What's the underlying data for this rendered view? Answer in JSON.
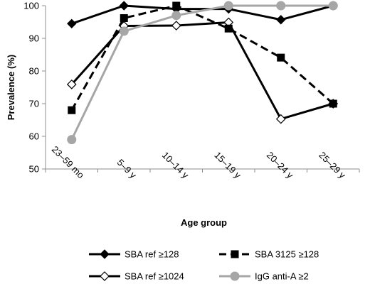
{
  "chart_data": {
    "type": "line",
    "xlabel": "Age group",
    "ylabel": "Prevalence (%)",
    "ylim": [
      50,
      100
    ],
    "yticks": [
      50,
      60,
      70,
      80,
      90,
      100
    ],
    "grid": false,
    "legend_position": "bottom",
    "categories": [
      "23–59 mo",
      "5–9 y",
      "10–14 y",
      "15–19 y",
      "20–24 y",
      "25–29 y"
    ],
    "series": [
      {
        "name": "SBA ref ≥128",
        "values": [
          94.5,
          100,
          99,
          99,
          95.7,
          100
        ],
        "color": "#000000",
        "marker": "filled-diamond",
        "dash": "solid"
      },
      {
        "name": "SBA 3125 ≥128",
        "values": [
          68,
          96.2,
          100,
          93,
          84.1,
          70
        ],
        "color": "#000000",
        "marker": "filled-square",
        "dash": "dashed"
      },
      {
        "name": "SBA ref ≥1024",
        "values": [
          75.9,
          93.8,
          93.9,
          94.9,
          65.3,
          70
        ],
        "color": "#000000",
        "marker": "open-diamond",
        "dash": "solid"
      },
      {
        "name": "IgG anti-A ≥2",
        "values": [
          59,
          92.2,
          97,
          100,
          100,
          100
        ],
        "color": "#a6a6a6",
        "marker": "circle",
        "dash": "solid"
      }
    ]
  }
}
